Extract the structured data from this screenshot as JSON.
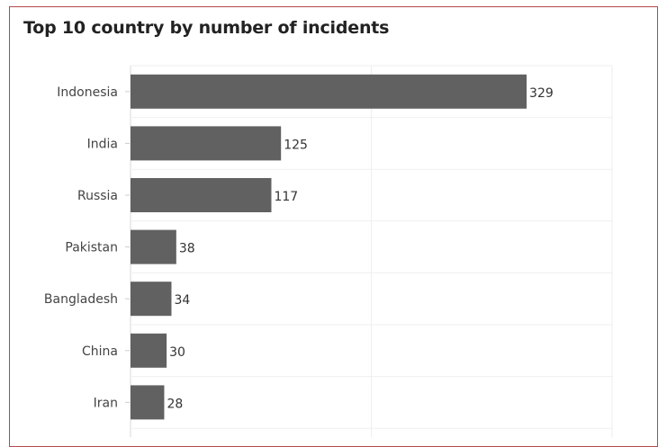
{
  "chart_data": {
    "type": "bar",
    "orientation": "horizontal",
    "title": "Top 10 country by number of incidents",
    "categories": [
      "Indonesia",
      "India",
      "Russia",
      "Pakistan",
      "Bangladesh",
      "China",
      "Iran"
    ],
    "values": [
      329,
      125,
      117,
      38,
      34,
      30,
      28
    ],
    "xlim": [
      0,
      400
    ],
    "grid": true,
    "bar_color": "#616161",
    "frame_color": "#b5484c",
    "data_labels": true
  }
}
